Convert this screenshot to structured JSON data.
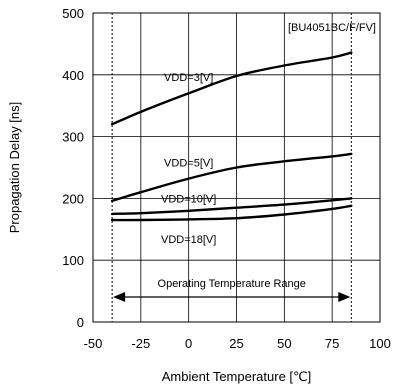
{
  "chart_data": {
    "type": "line",
    "title": "",
    "annotation": "[BU4051BC/F/FV]",
    "xlabel": "Ambient Temperature [℃]",
    "ylabel": "Propagation Delay [ns]",
    "xlim": [
      -50,
      100
    ],
    "ylim": [
      0,
      500
    ],
    "xticks": [
      -50,
      -25,
      0,
      25,
      50,
      75,
      100
    ],
    "yticks": [
      0,
      100,
      200,
      300,
      400,
      500
    ],
    "grid": true,
    "operating_range": {
      "label": "Operating Temperature Range",
      "x": [
        -40,
        85
      ]
    },
    "series": [
      {
        "name": "VDD=3[V]",
        "x": [
          -40,
          -25,
          0,
          25,
          50,
          75,
          85
        ],
        "values": [
          320,
          340,
          370,
          398,
          415,
          428,
          436
        ]
      },
      {
        "name": "VDD=5[V]",
        "x": [
          -40,
          -25,
          0,
          25,
          50,
          75,
          85
        ],
        "values": [
          196,
          210,
          232,
          250,
          260,
          268,
          272
        ]
      },
      {
        "name": "VDD=10[V]",
        "x": [
          -40,
          -25,
          0,
          25,
          50,
          75,
          85
        ],
        "values": [
          175,
          176,
          180,
          185,
          190,
          197,
          200
        ]
      },
      {
        "name": "VDD=18[V]",
        "x": [
          -40,
          -25,
          0,
          25,
          50,
          75,
          85
        ],
        "values": [
          165,
          165,
          166,
          168,
          174,
          183,
          188
        ]
      }
    ]
  }
}
